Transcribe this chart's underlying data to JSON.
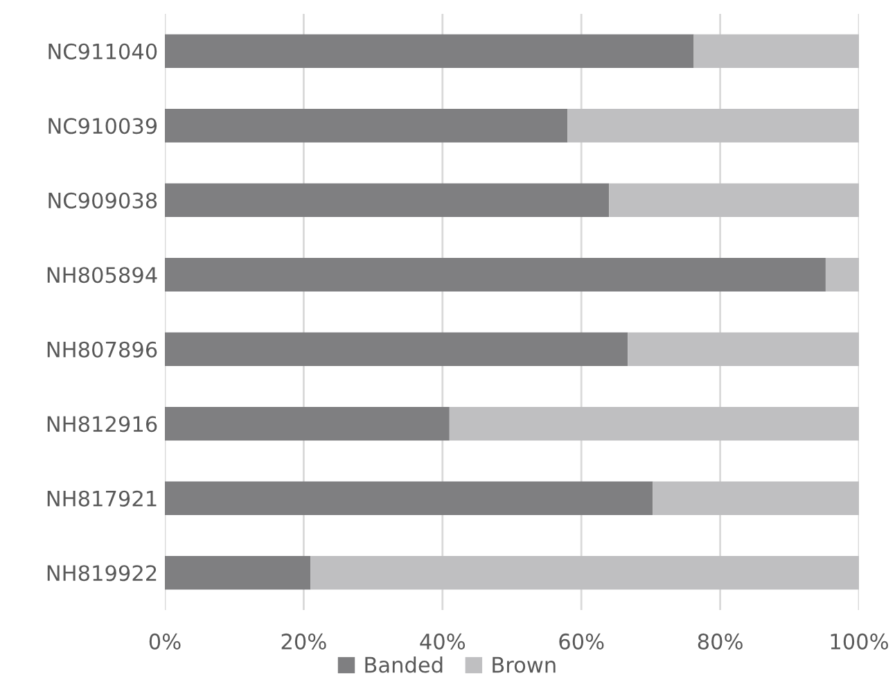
{
  "chart_data": {
    "type": "bar",
    "orientation": "horizontal",
    "stacked": true,
    "categories": [
      "NC911040",
      "NC910039",
      "NC909038",
      "NH805894",
      "NH807896",
      "NH812916",
      "NH817921",
      "NH819922"
    ],
    "series": [
      {
        "name": "Banded",
        "color": "#7f7f81",
        "values": [
          76.2,
          58,
          64,
          95.2,
          66.7,
          41,
          70.3,
          21
        ]
      },
      {
        "name": "Brown",
        "color": "#bfbfc1",
        "values": [
          23.8,
          42,
          36,
          4.8,
          33.3,
          59,
          29.7,
          79
        ]
      }
    ],
    "xlim": [
      0,
      100
    ],
    "xticks": [
      {
        "value": 0,
        "label": "0%"
      },
      {
        "value": 20,
        "label": "20%"
      },
      {
        "value": 40,
        "label": "40%"
      },
      {
        "value": 60,
        "label": "60%"
      },
      {
        "value": 80,
        "label": "80%"
      },
      {
        "value": 100,
        "label": "100%"
      }
    ],
    "grid": "x",
    "legend": "bottom"
  }
}
